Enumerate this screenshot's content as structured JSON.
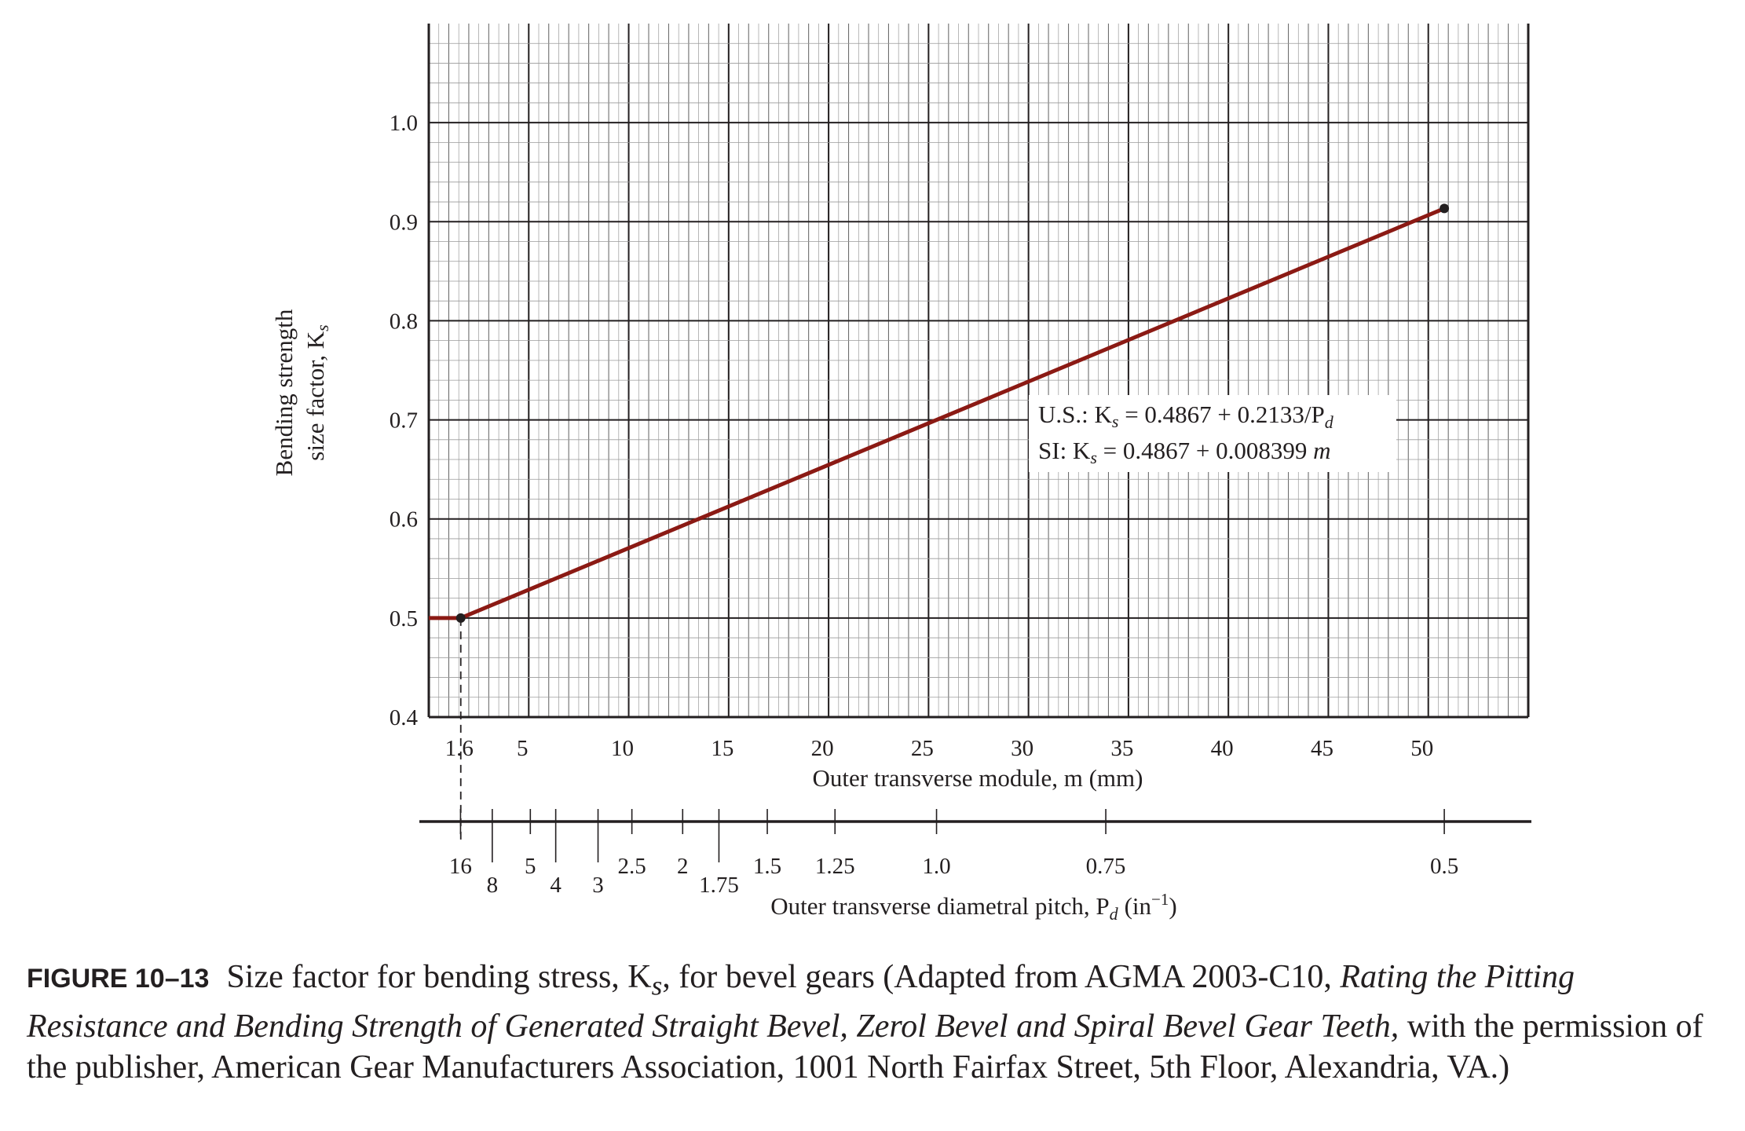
{
  "chart_data": {
    "type": "line",
    "title": "",
    "xlabel": "Outer transverse module, m (mm)",
    "ylabel_line1": "Bending strength",
    "ylabel_line2": "size factor, K",
    "ylabel_sub": "s",
    "x2label": "Outer transverse diametral pitch, P",
    "x2label_sub": "d",
    "x2label_unit": "(in",
    "x2label_exp": "−1",
    "x2label_close": ")",
    "xlim": [
      0,
      55
    ],
    "ylim": [
      0.4,
      1.1
    ],
    "grid": true,
    "x_ticks": [
      {
        "value": 1.6,
        "label": "1.6"
      },
      {
        "value": 5,
        "label": "5"
      },
      {
        "value": 10,
        "label": "10"
      },
      {
        "value": 15,
        "label": "15"
      },
      {
        "value": 20,
        "label": "20"
      },
      {
        "value": 25,
        "label": "25"
      },
      {
        "value": 30,
        "label": "30"
      },
      {
        "value": 35,
        "label": "35"
      },
      {
        "value": 40,
        "label": "40"
      },
      {
        "value": 45,
        "label": "45"
      },
      {
        "value": 50,
        "label": "50"
      }
    ],
    "y_ticks": [
      {
        "value": 0.4,
        "label": "0.4"
      },
      {
        "value": 0.5,
        "label": "0.5"
      },
      {
        "value": 0.6,
        "label": "0.6"
      },
      {
        "value": 0.7,
        "label": "0.7"
      },
      {
        "value": 0.8,
        "label": "0.8"
      },
      {
        "value": 0.9,
        "label": "0.9"
      },
      {
        "value": 1.0,
        "label": "1.0"
      }
    ],
    "pd_ticks": [
      {
        "value": 16,
        "label": "16",
        "row": 1
      },
      {
        "value": 8,
        "label": "8",
        "row": 2
      },
      {
        "value": 5,
        "label": "5",
        "row": 1
      },
      {
        "value": 4,
        "label": "4",
        "row": 2
      },
      {
        "value": 3,
        "label": "3",
        "row": 2
      },
      {
        "value": 2.5,
        "label": "2.5",
        "row": 1
      },
      {
        "value": 2,
        "label": "2",
        "row": 1
      },
      {
        "value": 1.75,
        "label": "1.75",
        "row": 2
      },
      {
        "value": 1.5,
        "label": "1.5",
        "row": 1
      },
      {
        "value": 1.25,
        "label": "1.25",
        "row": 1
      },
      {
        "value": 1.0,
        "label": "1.0",
        "row": 1
      },
      {
        "value": 0.75,
        "label": "0.75",
        "row": 1
      },
      {
        "value": 0.5,
        "label": "0.5",
        "row": 1
      }
    ],
    "series": [
      {
        "color": "#8b1a14",
        "points": [
          [
            0,
            0.5
          ],
          [
            1.6,
            0.5
          ],
          [
            50.8,
            0.9134
          ]
        ],
        "markers": [
          [
            1.6,
            0.5
          ],
          [
            50.8,
            0.9134
          ]
        ]
      }
    ],
    "equations": [
      {
        "prefix": "U.S.: K",
        "sub": "s",
        "body": " = 0.4867 + 0.2133/P",
        "tail_sub": "d"
      },
      {
        "prefix": "SI: K",
        "sub": "s",
        "body": " = 0.4867 + 0.008399 ",
        "tail_italic": "m"
      }
    ]
  },
  "caption": {
    "label": "FIGURE 10–13",
    "text1": "Size factor for bending stress, K",
    "sub": "s",
    "text2": ", for bevel gears (Adapted from AGMA 2003-C10, ",
    "title_italic": "Rating the Pitting Resistance and Bending Strength of Generated Straight Bevel, Zerol Bevel and Spiral Bevel Gear Teeth,",
    "text3": " with the permission of the publisher, American Gear Manufacturers Association, 1001 North Fairfax Street, 5th Floor, Alexandria, VA.)"
  },
  "colors": {
    "line": "#8b1a14",
    "ink": "#231f20",
    "grid_fine": "#9a9a9a"
  }
}
